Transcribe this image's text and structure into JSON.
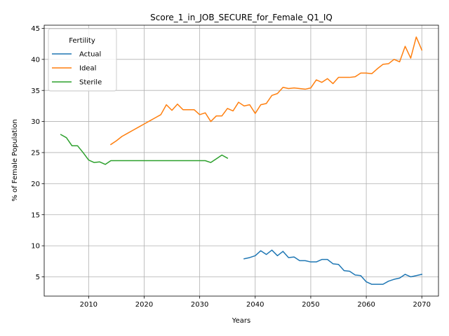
{
  "chart_data": {
    "type": "line",
    "title": "Score_1_in_JOB_SECURE_for_Female_Q1_IQ",
    "xlabel": "Years",
    "ylabel": "% of Female Population",
    "xlim": [
      2002,
      2073
    ],
    "ylim": [
      1.9,
      45.5
    ],
    "xticks": [
      2010,
      2020,
      2030,
      2040,
      2050,
      2060,
      2070
    ],
    "yticks": [
      5,
      10,
      15,
      20,
      25,
      30,
      35,
      40,
      45
    ],
    "grid": true,
    "legend": {
      "title": "Fertility",
      "placement": "top-left"
    },
    "series": [
      {
        "name": "Actual",
        "color": "#1f77b4",
        "x": [
          2038,
          2039,
          2040,
          2041,
          2042,
          2043,
          2044,
          2045,
          2046,
          2047,
          2048,
          2049,
          2050,
          2051,
          2052,
          2053,
          2054,
          2055,
          2056,
          2057,
          2058,
          2059,
          2060,
          2061,
          2062,
          2063,
          2064,
          2065,
          2066,
          2067,
          2068,
          2069,
          2070
        ],
        "y": [
          7.9,
          8.1,
          8.4,
          9.2,
          8.6,
          9.3,
          8.4,
          9.1,
          8.1,
          8.2,
          7.6,
          7.6,
          7.4,
          7.4,
          7.8,
          7.8,
          7.1,
          7.0,
          6.0,
          5.9,
          5.3,
          5.2,
          4.2,
          3.8,
          3.8,
          3.8,
          4.3,
          4.6,
          4.8,
          5.4,
          5.0,
          5.2,
          5.4
        ]
      },
      {
        "name": "Ideal",
        "color": "#ff7f0e",
        "x": [
          2014,
          2015,
          2016,
          2017,
          2018,
          2019,
          2020,
          2021,
          2022,
          2023,
          2024,
          2025,
          2026,
          2027,
          2028,
          2029,
          2030,
          2031,
          2032,
          2033,
          2034,
          2035,
          2036,
          2037,
          2038,
          2039,
          2040,
          2041,
          2042,
          2043,
          2044,
          2045,
          2046,
          2047,
          2048,
          2049,
          2050,
          2051,
          2052,
          2053,
          2054,
          2055,
          2056,
          2057,
          2058,
          2059,
          2060,
          2061,
          2062,
          2063,
          2064,
          2065,
          2066,
          2067,
          2068,
          2069,
          2070
        ],
        "y": [
          26.3,
          26.9,
          27.6,
          28.1,
          28.6,
          29.1,
          29.6,
          30.1,
          30.6,
          31.1,
          32.7,
          31.8,
          32.8,
          31.9,
          31.9,
          31.9,
          31.1,
          31.4,
          30.0,
          30.9,
          30.9,
          32.1,
          31.7,
          33.1,
          32.5,
          32.7,
          31.3,
          32.7,
          32.9,
          34.2,
          34.5,
          35.5,
          35.3,
          35.4,
          35.3,
          35.2,
          35.4,
          36.7,
          36.3,
          36.9,
          36.1,
          37.1,
          37.1,
          37.1,
          37.2,
          37.8,
          37.8,
          37.7,
          38.5,
          39.2,
          39.3,
          40.0,
          39.6,
          42.1,
          40.2,
          43.6,
          41.5
        ]
      },
      {
        "name": "Sterile",
        "color": "#2ca02c",
        "x": [
          2005,
          2006,
          2007,
          2008,
          2009,
          2010,
          2011,
          2012,
          2013,
          2014,
          2015,
          2016,
          2017,
          2018,
          2019,
          2020,
          2021,
          2022,
          2023,
          2024,
          2025,
          2026,
          2027,
          2028,
          2029,
          2030,
          2031,
          2032,
          2033,
          2034,
          2035
        ],
        "y": [
          27.9,
          27.4,
          26.1,
          26.1,
          25.0,
          23.8,
          23.4,
          23.5,
          23.1,
          23.7,
          23.7,
          23.7,
          23.7,
          23.7,
          23.7,
          23.7,
          23.7,
          23.7,
          23.7,
          23.7,
          23.7,
          23.7,
          23.7,
          23.7,
          23.7,
          23.7,
          23.7,
          23.4,
          24.0,
          24.6,
          24.1
        ]
      }
    ]
  }
}
